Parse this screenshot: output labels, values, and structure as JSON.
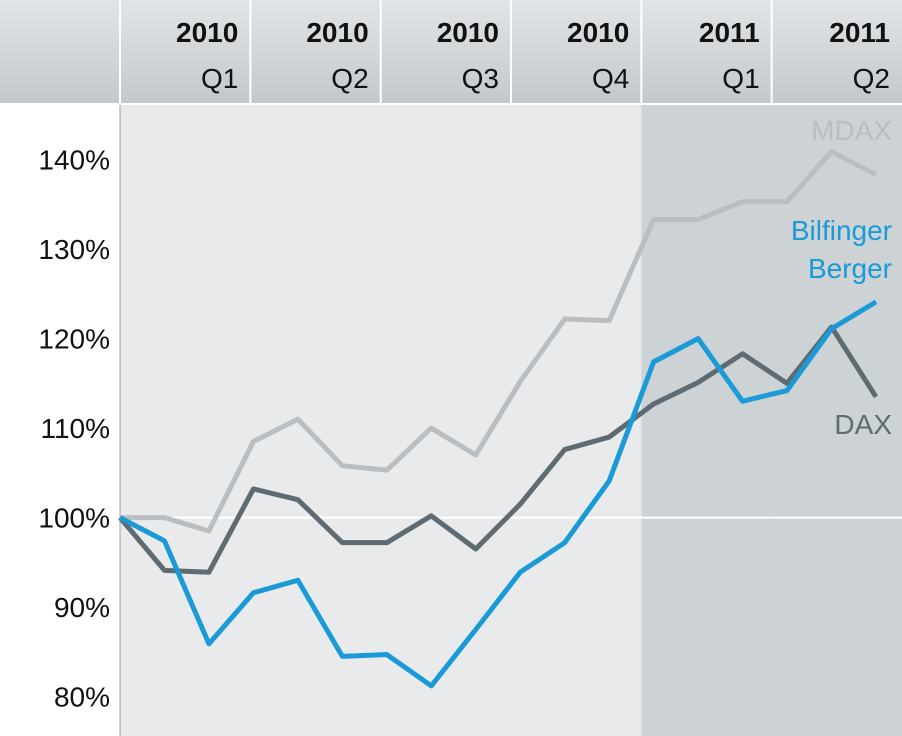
{
  "chart_data": {
    "type": "line",
    "columns": [
      {
        "year": "2010",
        "quarter": "Q1"
      },
      {
        "year": "2010",
        "quarter": "Q2"
      },
      {
        "year": "2010",
        "quarter": "Q3"
      },
      {
        "year": "2010",
        "quarter": "Q4"
      },
      {
        "year": "2011",
        "quarter": "Q1"
      },
      {
        "year": "2011",
        "quarter": "Q2"
      }
    ],
    "highlight_columns": [
      4,
      5
    ],
    "ylim": [
      75.6,
      146.1
    ],
    "yticks": [
      {
        "value": 80,
        "label": "80%"
      },
      {
        "value": 90,
        "label": "90%"
      },
      {
        "value": 100,
        "label": "100%"
      },
      {
        "value": 110,
        "label": "110%"
      },
      {
        "value": 120,
        "label": "120%"
      },
      {
        "value": 130,
        "label": "130%"
      },
      {
        "value": 140,
        "label": "140%"
      }
    ],
    "reference_line": 100,
    "series": [
      {
        "name": "MDAX",
        "color": "#b9bec2",
        "values": [
          100,
          100,
          98.5,
          108.5,
          111,
          105.8,
          105.3,
          110,
          107,
          115.2,
          122.2,
          122,
          133.3,
          133.3,
          135.3,
          135.3,
          140.9,
          138.3
        ]
      },
      {
        "name": "DAX",
        "color": "#5f6b72",
        "values": [
          100,
          94.1,
          93.9,
          103.2,
          102,
          97.2,
          97.2,
          100.2,
          96.5,
          101.5,
          107.6,
          109,
          112.7,
          115.1,
          118.3,
          115,
          121.3,
          113.5
        ]
      },
      {
        "name": "Bilfinger Berger",
        "color": "#1a9ad6",
        "values": [
          100,
          97.4,
          85.9,
          91.6,
          93,
          84.5,
          84.7,
          81.2,
          87.5,
          93.9,
          97.2,
          104.1,
          117.4,
          120,
          113,
          114.2,
          121.1,
          124.1
        ]
      }
    ]
  }
}
